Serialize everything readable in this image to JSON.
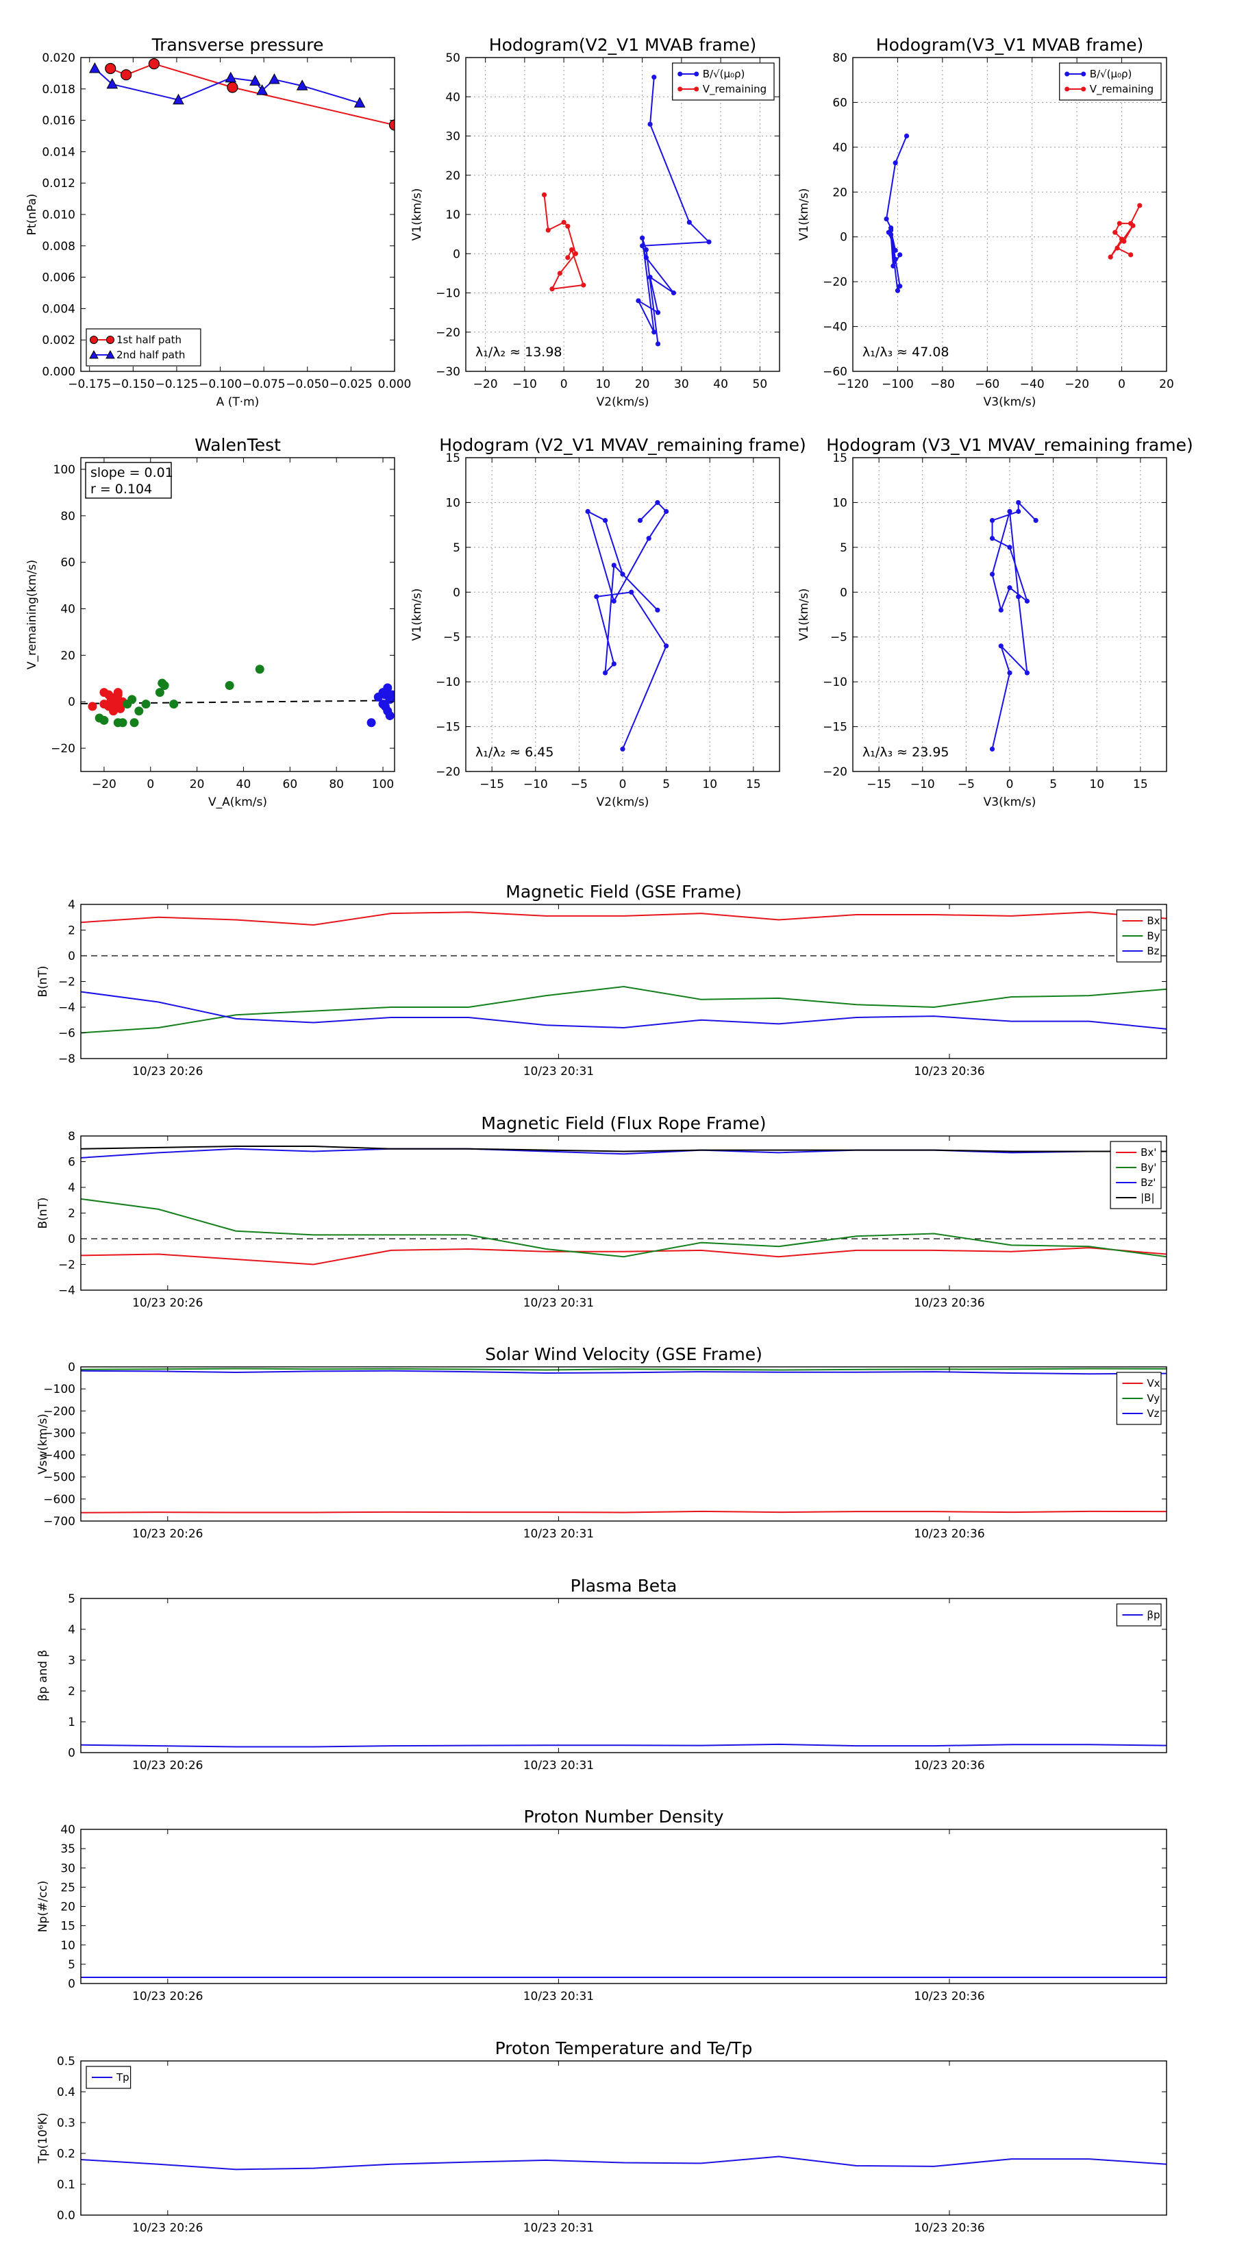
{
  "colors": {
    "red": "#e8151b",
    "green": "#13801b",
    "blue": "#1a12e6",
    "black": "#000000"
  },
  "chart_data": [
    {
      "type": "line",
      "title": "Transverse pressure",
      "xlabel": "A (T·m)",
      "ylabel": "Pt(nPa)",
      "xlim": [
        -0.18,
        0.0
      ],
      "ylim": [
        0,
        0.02
      ],
      "xticks": [
        -0.175,
        -0.15,
        -0.125,
        -0.1,
        -0.075,
        -0.05,
        -0.025,
        0.0
      ],
      "xtick_labels": [
        "−0.175",
        "−0.150",
        "−0.125",
        "−0.100",
        "−0.075",
        "−0.050",
        "−0.025",
        "0.000"
      ],
      "yticks": [
        0,
        0.002,
        0.004,
        0.006,
        0.008,
        0.01,
        0.012,
        0.014,
        0.016,
        0.018,
        0.02
      ],
      "ytick_labels": [
        "0.000",
        "0.002",
        "0.004",
        "0.006",
        "0.008",
        "0.010",
        "0.012",
        "0.014",
        "0.016",
        "0.018",
        "0.020"
      ],
      "grid": false,
      "legend": "lower-left",
      "series": [
        {
          "name": "1st half path",
          "color": "red",
          "marker": "circle",
          "x": [
            -0.163,
            -0.154,
            -0.138,
            -0.093,
            0.0
          ],
          "y": [
            0.0193,
            0.0189,
            0.0196,
            0.0181,
            0.0157
          ]
        },
        {
          "name": "2nd half path",
          "color": "blue",
          "marker": "triangle",
          "x": [
            -0.172,
            -0.162,
            -0.124,
            -0.094,
            -0.08,
            -0.076,
            -0.069,
            -0.053,
            -0.02
          ],
          "y": [
            0.0193,
            0.0183,
            0.0173,
            0.0187,
            0.0185,
            0.0179,
            0.0186,
            0.0182,
            0.0171
          ]
        }
      ]
    },
    {
      "type": "line",
      "title": "Hodogram(V2_V1 MVAB frame)",
      "xlabel": "V2(km/s)",
      "ylabel": "V1(km/s)",
      "xlim": [
        -25,
        55
      ],
      "ylim": [
        -30,
        50
      ],
      "xticks": [
        -20,
        -10,
        0,
        10,
        20,
        30,
        40,
        50
      ],
      "xtick_labels": [
        "−20",
        "−10",
        "0",
        "10",
        "20",
        "30",
        "40",
        "50"
      ],
      "yticks": [
        -30,
        -20,
        -10,
        0,
        10,
        20,
        30,
        40,
        50
      ],
      "ytick_labels": [
        "−30",
        "−20",
        "−10",
        "0",
        "10",
        "20",
        "30",
        "40",
        "50"
      ],
      "grid": true,
      "legend": "top-right",
      "annotation": "λ₁/λ₂ ≈ 13.98",
      "series": [
        {
          "name": "B/√(μ₀ρ)",
          "color": "blue",
          "marker": "dot",
          "x": [
            23,
            22,
            32,
            37,
            20,
            21,
            28,
            22,
            24,
            19,
            23,
            20,
            21,
            24
          ],
          "y": [
            45,
            33,
            8,
            3,
            2,
            -1,
            -10,
            -6,
            -15,
            -12,
            -20,
            4,
            1,
            -23
          ]
        },
        {
          "name": "V_remaining",
          "color": "red",
          "marker": "dot",
          "x": [
            -5,
            -4,
            0,
            1,
            3,
            -1,
            -3,
            5,
            2,
            1
          ],
          "y": [
            15,
            6,
            8,
            7,
            0,
            -5,
            -9,
            -8,
            1,
            -1
          ]
        }
      ]
    },
    {
      "type": "line",
      "title": "Hodogram(V3_V1 MVAB frame)",
      "xlabel": "V3(km/s)",
      "ylabel": "V1(km/s)",
      "xlim": [
        -120,
        20
      ],
      "ylim": [
        -60,
        80
      ],
      "xticks": [
        -120,
        -100,
        -80,
        -60,
        -40,
        -20,
        0,
        20
      ],
      "xtick_labels": [
        "−120",
        "−100",
        "−80",
        "−60",
        "−40",
        "−20",
        "0",
        "20"
      ],
      "yticks": [
        -60,
        -40,
        -20,
        0,
        20,
        40,
        60,
        80
      ],
      "ytick_labels": [
        "−60",
        "−40",
        "−20",
        "0",
        "20",
        "40",
        "60",
        "80"
      ],
      "grid": true,
      "legend": "top-right",
      "annotation": "λ₁/λ₃ ≈ 47.08",
      "series": [
        {
          "name": "B/√(μ₀ρ)",
          "color": "blue",
          "marker": "dot",
          "x": [
            -96,
            -101,
            -105,
            -103,
            -104,
            -101,
            -103,
            -101,
            -99,
            -100,
            -103,
            -102,
            -99
          ],
          "y": [
            45,
            33,
            8,
            4,
            2,
            -6,
            3,
            -10,
            -22,
            -24,
            1,
            -13,
            -8
          ]
        },
        {
          "name": "V_remaining",
          "color": "red",
          "marker": "dot",
          "x": [
            8,
            4,
            -1,
            -3,
            1,
            5,
            -5,
            0,
            -2,
            4
          ],
          "y": [
            14,
            6,
            6,
            2,
            -2,
            5,
            -9,
            -1,
            -5,
            -8
          ]
        }
      ]
    },
    {
      "type": "scatter",
      "title": "WalenTest",
      "xlabel": "V_A(km/s)",
      "ylabel": "V_remaining(km/s)",
      "xlim": [
        -30,
        105
      ],
      "ylim": [
        -30,
        105
      ],
      "xticks": [
        -20,
        0,
        20,
        40,
        60,
        80,
        100
      ],
      "xtick_labels": [
        "−20",
        "0",
        "20",
        "40",
        "60",
        "80",
        "100"
      ],
      "yticks": [
        -20,
        0,
        20,
        40,
        60,
        80,
        100
      ],
      "ytick_labels": [
        "−20",
        "0",
        "20",
        "40",
        "60",
        "80",
        "100"
      ],
      "grid": false,
      "textbox": [
        "slope = 0.01",
        "r = 0.104"
      ],
      "fit_line": {
        "slope": 0.01,
        "intercept": -0.5
      },
      "series": [
        {
          "color": "red",
          "x": [
            -25,
            -20,
            -18,
            -17,
            -16,
            -15,
            -14,
            -13,
            -12,
            -18,
            -16,
            -14,
            -20,
            -15,
            -13
          ],
          "y": [
            -2,
            4,
            3,
            1,
            -1,
            2,
            4,
            -3,
            0,
            -2,
            -4,
            3,
            -1,
            0,
            -2
          ]
        },
        {
          "color": "green",
          "x": [
            -22,
            -20,
            -12,
            -10,
            -8,
            -5,
            -2,
            4,
            5,
            6,
            -7,
            10,
            34,
            47,
            -14
          ],
          "y": [
            -7,
            -8,
            -9,
            -1,
            1,
            -4,
            -1,
            4,
            8,
            7,
            -9,
            -1,
            7,
            14,
            -9
          ]
        },
        {
          "color": "blue",
          "x": [
            95,
            98,
            100,
            101,
            102,
            103,
            102,
            101,
            104,
            100,
            103
          ],
          "y": [
            -9,
            2,
            4,
            3,
            6,
            1,
            -4,
            -2,
            3,
            -1,
            -6
          ]
        }
      ]
    },
    {
      "type": "line",
      "title": "Hodogram (V2_V1 MVAV_remaining frame)",
      "xlabel": "V2(km/s)",
      "ylabel": "V1(km/s)",
      "xlim": [
        -18,
        18
      ],
      "ylim": [
        -20,
        15
      ],
      "xticks": [
        -15,
        -10,
        -5,
        0,
        5,
        10,
        15
      ],
      "xtick_labels": [
        "−15",
        "−10",
        "−5",
        "0",
        "5",
        "10",
        "15"
      ],
      "yticks": [
        -20,
        -15,
        -10,
        -5,
        0,
        5,
        10,
        15
      ],
      "ytick_labels": [
        "−20",
        "−15",
        "−10",
        "−5",
        "0",
        "5",
        "10",
        "15"
      ],
      "grid": true,
      "annotation": "λ₁/λ₂ ≈ 6.45",
      "series": [
        {
          "color": "blue",
          "marker": "dot",
          "x": [
            2,
            4,
            5,
            3,
            -1,
            -4,
            -2,
            0,
            4,
            -1,
            -2,
            -1,
            -3,
            1,
            5,
            0
          ],
          "y": [
            8,
            10,
            9,
            6,
            -1,
            9,
            8,
            2,
            -2,
            3,
            -9,
            -8,
            -0.5,
            0,
            -6,
            -17.5
          ]
        }
      ]
    },
    {
      "type": "line",
      "title": "Hodogram (V3_V1 MVAV_remaining frame)",
      "xlabel": "V3(km/s)",
      "ylabel": "V1(km/s)",
      "xlim": [
        -18,
        18
      ],
      "ylim": [
        -20,
        15
      ],
      "xticks": [
        -15,
        -10,
        -5,
        0,
        5,
        10,
        15
      ],
      "xtick_labels": [
        "−15",
        "−10",
        "−5",
        "0",
        "5",
        "10",
        "15"
      ],
      "yticks": [
        -20,
        -15,
        -10,
        -5,
        0,
        5,
        10,
        15
      ],
      "ytick_labels": [
        "−20",
        "−15",
        "−10",
        "−5",
        "0",
        "5",
        "10",
        "15"
      ],
      "grid": true,
      "annotation": "λ₁/λ₃ ≈ 23.95",
      "series": [
        {
          "color": "blue",
          "marker": "dot",
          "x": [
            3,
            1,
            1,
            -2,
            -2,
            0,
            2,
            0,
            -1,
            -2,
            0,
            1,
            2,
            -1,
            0,
            -2
          ],
          "y": [
            8,
            10,
            9,
            8,
            6,
            5,
            -1,
            0.5,
            -2,
            2,
            9,
            -0.5,
            -9,
            -6,
            -9,
            -17.5
          ]
        }
      ]
    },
    {
      "type": "line",
      "title": "Magnetic Field (GSE Frame)",
      "ylabel": "B(nT)",
      "ylim": [
        -8,
        4
      ],
      "yticks": [
        -8,
        -6,
        -4,
        -2,
        0,
        2,
        4
      ],
      "ytick_labels": [
        "−8",
        "−6",
        "−4",
        "−2",
        "0",
        "2",
        "4"
      ],
      "xtick_labels": [
        "10/23 20:26",
        "10/23 20:31",
        "10/23 20:36"
      ],
      "legend": "top-right",
      "zero_line": true,
      "series": [
        {
          "name": "Bx",
          "color": "red",
          "values": [
            2.6,
            3.0,
            2.8,
            2.4,
            3.3,
            3.4,
            3.1,
            3.1,
            3.3,
            2.8,
            3.2,
            3.2,
            3.1,
            3.4,
            2.9
          ]
        },
        {
          "name": "By",
          "color": "green",
          "values": [
            -6.0,
            -5.6,
            -4.6,
            -4.3,
            -4.0,
            -4.0,
            -3.1,
            -2.4,
            -3.4,
            -3.3,
            -3.8,
            -4.0,
            -3.2,
            -3.1,
            -2.6
          ]
        },
        {
          "name": "Bz",
          "color": "blue",
          "values": [
            -2.8,
            -3.6,
            -4.9,
            -5.2,
            -4.8,
            -4.8,
            -5.4,
            -5.6,
            -5.0,
            -5.3,
            -4.8,
            -4.7,
            -5.1,
            -5.1,
            -5.7
          ]
        }
      ]
    },
    {
      "type": "line",
      "title": "Magnetic Field (Flux Rope Frame)",
      "ylabel": "B(nT)",
      "ylim": [
        -4,
        8
      ],
      "yticks": [
        -4,
        -2,
        0,
        2,
        4,
        6,
        8
      ],
      "ytick_labels": [
        "−4",
        "−2",
        "0",
        "2",
        "4",
        "6",
        "8"
      ],
      "xtick_labels": [
        "10/23 20:26",
        "10/23 20:31",
        "10/23 20:36"
      ],
      "legend": "top-right",
      "zero_line": true,
      "series": [
        {
          "name": "Bx'",
          "color": "red",
          "values": [
            -1.3,
            -1.2,
            -1.6,
            -2.0,
            -0.9,
            -0.8,
            -1.0,
            -1.0,
            -0.9,
            -1.4,
            -0.9,
            -0.9,
            -1.0,
            -0.7,
            -1.2
          ]
        },
        {
          "name": "By'",
          "color": "green",
          "values": [
            3.1,
            2.3,
            0.6,
            0.3,
            0.3,
            0.3,
            -0.8,
            -1.4,
            -0.3,
            -0.6,
            0.2,
            0.4,
            -0.5,
            -0.6,
            -1.4
          ]
        },
        {
          "name": "Bz'",
          "color": "blue",
          "values": [
            6.3,
            6.7,
            7.0,
            6.8,
            7.0,
            7.0,
            6.8,
            6.6,
            6.9,
            6.7,
            6.9,
            6.9,
            6.7,
            6.8,
            6.8
          ]
        },
        {
          "name": "|B|",
          "color": "black",
          "values": [
            7.0,
            7.1,
            7.2,
            7.2,
            7.0,
            7.0,
            6.9,
            6.8,
            6.9,
            6.9,
            6.9,
            6.9,
            6.8,
            6.8,
            6.8
          ]
        }
      ]
    },
    {
      "type": "line",
      "title": "Solar Wind Velocity (GSE Frame)",
      "ylabel": "Vsw(km/s)",
      "ylim": [
        -700,
        0
      ],
      "yticks": [
        -700,
        -600,
        -500,
        -400,
        -300,
        -200,
        -100,
        0
      ],
      "ytick_labels": [
        "−700",
        "−600",
        "−500",
        "−400",
        "−300",
        "−200",
        "−100",
        "0"
      ],
      "xtick_labels": [
        "10/23 20:26",
        "10/23 20:31",
        "10/23 20:36"
      ],
      "legend": "top-right",
      "series": [
        {
          "name": "Vx",
          "color": "red",
          "values": [
            -662,
            -660,
            -661,
            -661,
            -659,
            -660,
            -660,
            -661,
            -656,
            -660,
            -657,
            -657,
            -660,
            -656,
            -657
          ]
        },
        {
          "name": "Vy",
          "color": "green",
          "values": [
            -12,
            -10,
            -8,
            -10,
            -9,
            -11,
            -14,
            -10,
            -12,
            -14,
            -12,
            -11,
            -10,
            -8,
            -9
          ]
        },
        {
          "name": "Vz",
          "color": "blue",
          "values": [
            -18,
            -20,
            -25,
            -20,
            -18,
            -22,
            -28,
            -26,
            -22,
            -24,
            -24,
            -22,
            -28,
            -32,
            -30
          ]
        }
      ]
    },
    {
      "type": "line",
      "title": "Plasma Beta",
      "ylabel": "βp and β",
      "ylim": [
        0,
        5
      ],
      "yticks": [
        0,
        1,
        2,
        3,
        4,
        5
      ],
      "ytick_labels": [
        "0",
        "1",
        "2",
        "3",
        "4",
        "5"
      ],
      "xtick_labels": [
        "10/23 20:26",
        "10/23 20:31",
        "10/23 20:36"
      ],
      "legend": "top-right",
      "series": [
        {
          "name": "βp",
          "color": "blue",
          "values": [
            0.25,
            0.22,
            0.19,
            0.19,
            0.22,
            0.23,
            0.24,
            0.24,
            0.23,
            0.27,
            0.22,
            0.22,
            0.26,
            0.26,
            0.23
          ]
        }
      ]
    },
    {
      "type": "line",
      "title": "Proton Number Density",
      "ylabel": "Np(#/cc)",
      "ylim": [
        0,
        40
      ],
      "yticks": [
        0,
        5,
        10,
        15,
        20,
        25,
        30,
        35,
        40
      ],
      "ytick_labels": [
        "0",
        "5",
        "10",
        "15",
        "20",
        "25",
        "30",
        "35",
        "40"
      ],
      "xtick_labels": [
        "10/23 20:26",
        "10/23 20:31",
        "10/23 20:36"
      ],
      "series": [
        {
          "color": "blue",
          "values": [
            1.6,
            1.6,
            1.6,
            1.6,
            1.6,
            1.6,
            1.6,
            1.6,
            1.6,
            1.6,
            1.6,
            1.6,
            1.6,
            1.6,
            1.6
          ]
        }
      ]
    },
    {
      "type": "line",
      "title": "Proton Temperature and Te/Tp",
      "ylabel": "Tp(10⁶K)",
      "ylim": [
        0,
        0.5
      ],
      "yticks": [
        0,
        0.1,
        0.2,
        0.3,
        0.4,
        0.5
      ],
      "ytick_labels": [
        "0.0",
        "0.1",
        "0.2",
        "0.3",
        "0.4",
        "0.5"
      ],
      "xtick_labels": [
        "10/23 20:26",
        "10/23 20:31",
        "10/23 20:36"
      ],
      "legend": "top-left",
      "series": [
        {
          "name": "Tp",
          "color": "blue",
          "values": [
            0.18,
            0.165,
            0.148,
            0.152,
            0.165,
            0.172,
            0.178,
            0.17,
            0.168,
            0.19,
            0.16,
            0.158,
            0.182,
            0.182,
            0.165
          ]
        }
      ]
    }
  ]
}
